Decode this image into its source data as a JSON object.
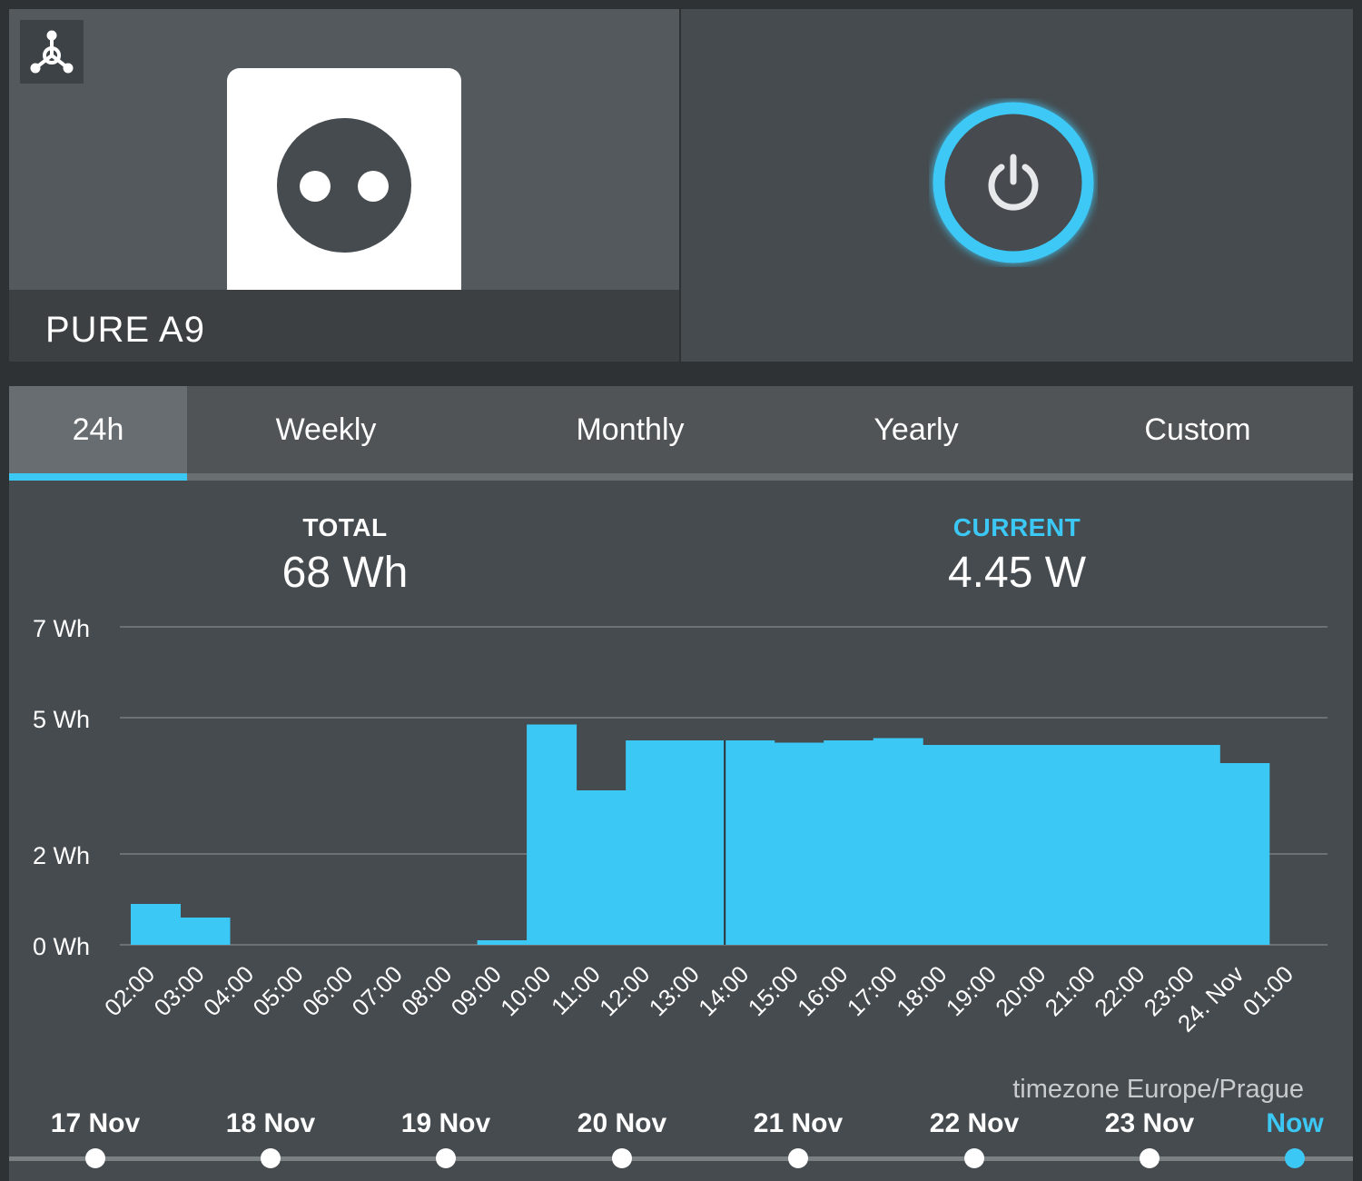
{
  "device": {
    "name": "PURE A9",
    "hub_icon": "hub-network-icon",
    "tile_icon": "power-socket-icon",
    "power_icon": "power-icon",
    "power_state": "on"
  },
  "tabs": [
    {
      "label": "24h",
      "active": true
    },
    {
      "label": "Weekly",
      "active": false
    },
    {
      "label": "Monthly",
      "active": false
    },
    {
      "label": "Yearly",
      "active": false
    },
    {
      "label": "Custom",
      "active": false
    }
  ],
  "stats": {
    "total_label": "TOTAL",
    "total_value": "68 Wh",
    "current_label": "CURRENT",
    "current_value": "4.45 W"
  },
  "timezone": "timezone Europe/Prague",
  "timeline": {
    "items": [
      "17 Nov",
      "18 Nov",
      "19 Nov",
      "20 Nov",
      "21 Nov",
      "22 Nov",
      "23 Nov",
      "Now"
    ],
    "selected": "Now"
  },
  "colors": {
    "accent": "#3cc8f5",
    "background": "#464b4f",
    "grid": "#6c7174"
  },
  "chart_data": {
    "type": "bar",
    "categories": [
      "02:00",
      "03:00",
      "04:00",
      "05:00",
      "06:00",
      "07:00",
      "08:00",
      "09:00",
      "10:00",
      "11:00",
      "12:00",
      "13:00",
      "14:00",
      "15:00",
      "16:00",
      "17:00",
      "18:00",
      "19:00",
      "20:00",
      "21:00",
      "22:00",
      "23:00",
      "24. Nov",
      "01:00"
    ],
    "series": [
      {
        "values": [
          0.9,
          0.6,
          0,
          0,
          0,
          0,
          0,
          0.1,
          4.85,
          3.4,
          4.5,
          4.5,
          4.5,
          4.45,
          4.5,
          4.55,
          4.4,
          4.4,
          4.4,
          4.4,
          4.4,
          4.4,
          4.0,
          0
        ]
      }
    ],
    "yticks": [
      0,
      2,
      5,
      7
    ],
    "ytick_labels": [
      "0 Wh",
      "2 Wh",
      "5 Wh",
      "7 Wh"
    ],
    "ylim": [
      0,
      7
    ],
    "grid": true,
    "marker_category": "14:00"
  }
}
